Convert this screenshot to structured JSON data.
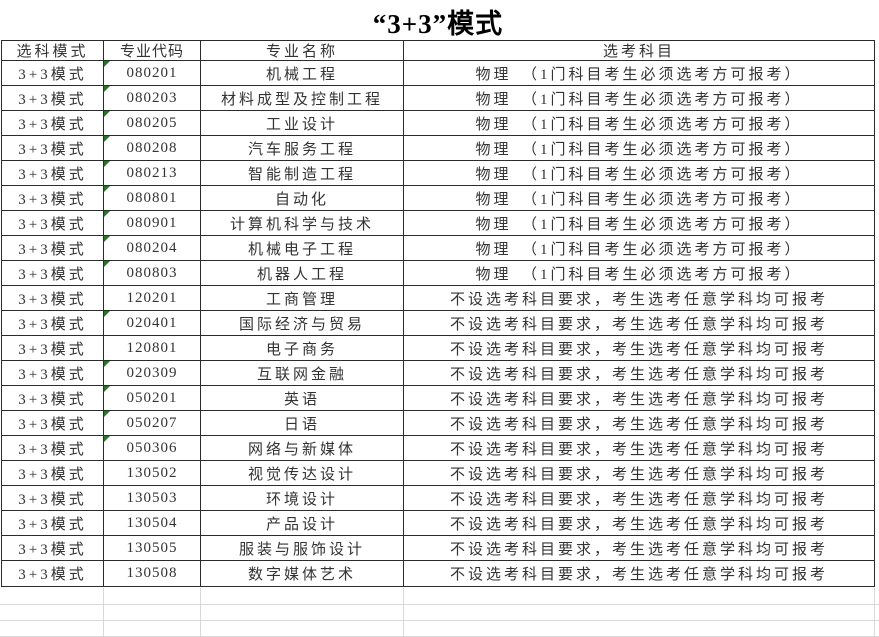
{
  "title": "“3+3”模式",
  "colors": {
    "table_border": "#2b2b2b",
    "faint_gridline": "#d9d9d9",
    "text_format_triangle": "#1e7b1e",
    "text": "#333333",
    "background": "#ffffff"
  },
  "table": {
    "headers": [
      "选科模式",
      "专业代码",
      "专业名称",
      "选考科目"
    ],
    "subject_physics": "物理　（1门科目考生必须选考方可报考）",
    "subject_any": "不设选考科目要求，考生选考任意学科均可报考",
    "rows": [
      {
        "mode": "3+3模式",
        "code": "080201",
        "major": "机械工程",
        "subject": "物理　（1门科目考生必须选考方可报考）",
        "text_format_marker": true
      },
      {
        "mode": "3+3模式",
        "code": "080203",
        "major": "材料成型及控制工程",
        "subject": "物理　（1门科目考生必须选考方可报考）",
        "text_format_marker": true
      },
      {
        "mode": "3+3模式",
        "code": "080205",
        "major": "工业设计",
        "subject": "物理　（1门科目考生必须选考方可报考）",
        "text_format_marker": true
      },
      {
        "mode": "3+3模式",
        "code": "080208",
        "major": "汽车服务工程",
        "subject": "物理　（1门科目考生必须选考方可报考）",
        "text_format_marker": true
      },
      {
        "mode": "3+3模式",
        "code": "080213",
        "major": "智能制造工程",
        "subject": "物理　（1门科目考生必须选考方可报考）",
        "text_format_marker": true
      },
      {
        "mode": "3+3模式",
        "code": "080801",
        "major": "自动化",
        "subject": "物理　（1门科目考生必须选考方可报考）",
        "text_format_marker": true
      },
      {
        "mode": "3+3模式",
        "code": "080901",
        "major": "计算机科学与技术",
        "subject": "物理　（1门科目考生必须选考方可报考）",
        "text_format_marker": true
      },
      {
        "mode": "3+3模式",
        "code": "080204",
        "major": "机械电子工程",
        "subject": "物理　（1门科目考生必须选考方可报考）",
        "text_format_marker": true
      },
      {
        "mode": "3+3模式",
        "code": "080803",
        "major": "机器人工程",
        "subject": "物理　（1门科目考生必须选考方可报考）",
        "text_format_marker": true
      },
      {
        "mode": "3+3模式",
        "code": "120201",
        "major": "工商管理",
        "subject": "不设选考科目要求，考生选考任意学科均可报考",
        "text_format_marker": false
      },
      {
        "mode": "3+3模式",
        "code": "020401",
        "major": "国际经济与贸易",
        "subject": "不设选考科目要求，考生选考任意学科均可报考",
        "text_format_marker": true
      },
      {
        "mode": "3+3模式",
        "code": "120801",
        "major": "电子商务",
        "subject": "不设选考科目要求，考生选考任意学科均可报考",
        "text_format_marker": false
      },
      {
        "mode": "3+3模式",
        "code": "020309",
        "major": "互联网金融",
        "subject": "不设选考科目要求，考生选考任意学科均可报考",
        "text_format_marker": true
      },
      {
        "mode": "3+3模式",
        "code": "050201",
        "major": "英语",
        "subject": "不设选考科目要求，考生选考任意学科均可报考",
        "text_format_marker": true
      },
      {
        "mode": "3+3模式",
        "code": "050207",
        "major": "日语",
        "subject": "不设选考科目要求，考生选考任意学科均可报考",
        "text_format_marker": true
      },
      {
        "mode": "3+3模式",
        "code": "050306",
        "major": "网络与新媒体",
        "subject": "不设选考科目要求，考生选考任意学科均可报考",
        "text_format_marker": true
      },
      {
        "mode": "3+3模式",
        "code": "130502",
        "major": "视觉传达设计",
        "subject": "不设选考科目要求，考生选考任意学科均可报考",
        "text_format_marker": false
      },
      {
        "mode": "3+3模式",
        "code": "130503",
        "major": "环境设计",
        "subject": "不设选考科目要求，考生选考任意学科均可报考",
        "text_format_marker": false
      },
      {
        "mode": "3+3模式",
        "code": "130504",
        "major": "产品设计",
        "subject": "不设选考科目要求，考生选考任意学科均可报考",
        "text_format_marker": false
      },
      {
        "mode": "3+3模式",
        "code": "130505",
        "major": "服装与服饰设计",
        "subject": "不设选考科目要求，考生选考任意学科均可报考",
        "text_format_marker": false
      },
      {
        "mode": "3+3模式",
        "code": "130508",
        "major": "数字媒体艺术",
        "subject": "不设选考科目要求，考生选考任意学科均可报考",
        "text_format_marker": false
      }
    ]
  }
}
